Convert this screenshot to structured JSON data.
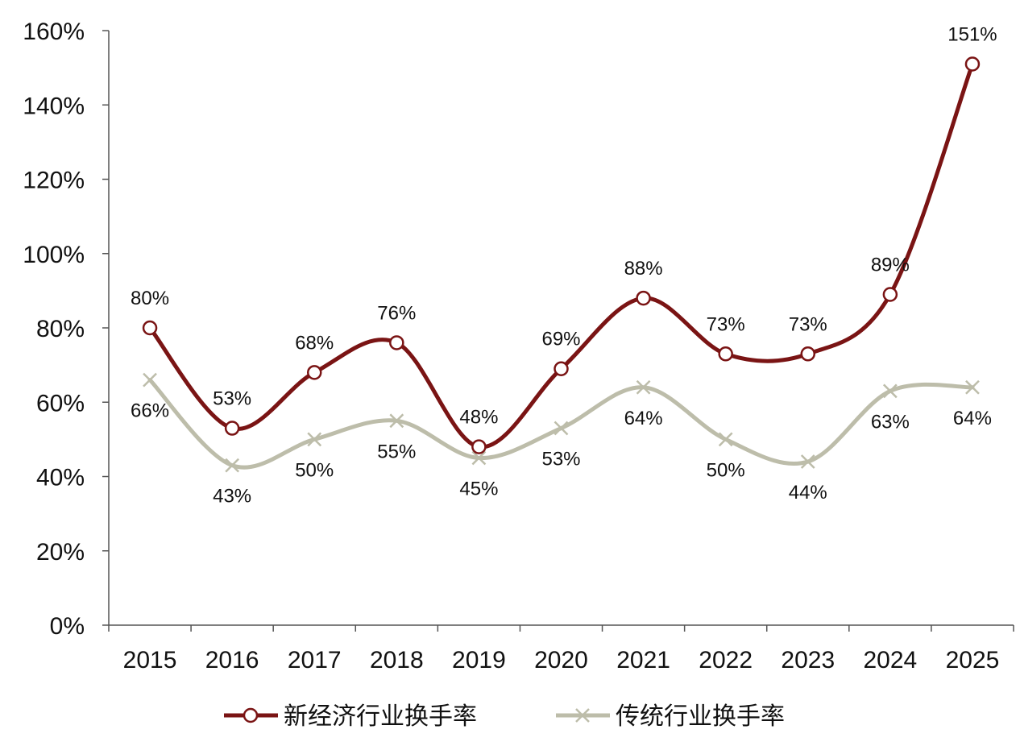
{
  "chart_data": {
    "type": "line",
    "title": "",
    "xlabel": "",
    "ylabel": "",
    "categories": [
      "2015",
      "2016",
      "2017",
      "2018",
      "2019",
      "2020",
      "2021",
      "2022",
      "2023",
      "2024",
      "2025"
    ],
    "ylim": [
      0,
      160
    ],
    "yticks": [
      0,
      20,
      40,
      60,
      80,
      100,
      120,
      140,
      160
    ],
    "ytick_labels": [
      "0%",
      "20%",
      "40%",
      "60%",
      "80%",
      "100%",
      "120%",
      "140%",
      "160%"
    ],
    "grid": false,
    "legend_position": "bottom",
    "series": [
      {
        "name": "新经济行业换手率",
        "color": "#7a1414",
        "marker": "circle",
        "values": [
          80,
          53,
          68,
          76,
          48,
          69,
          88,
          73,
          73,
          89,
          151
        ],
        "labels": [
          "80%",
          "53%",
          "68%",
          "76%",
          "48%",
          "69%",
          "88%",
          "73%",
          "73%",
          "89%",
          "151%"
        ]
      },
      {
        "name": "传统行业换手率",
        "color": "#bdbdaa",
        "marker": "x",
        "values": [
          66,
          43,
          50,
          55,
          45,
          53,
          64,
          50,
          44,
          63,
          64
        ],
        "labels": [
          "66%",
          "43%",
          "50%",
          "55%",
          "45%",
          "53%",
          "64%",
          "50%",
          "44%",
          "63%",
          "64%"
        ]
      }
    ]
  }
}
